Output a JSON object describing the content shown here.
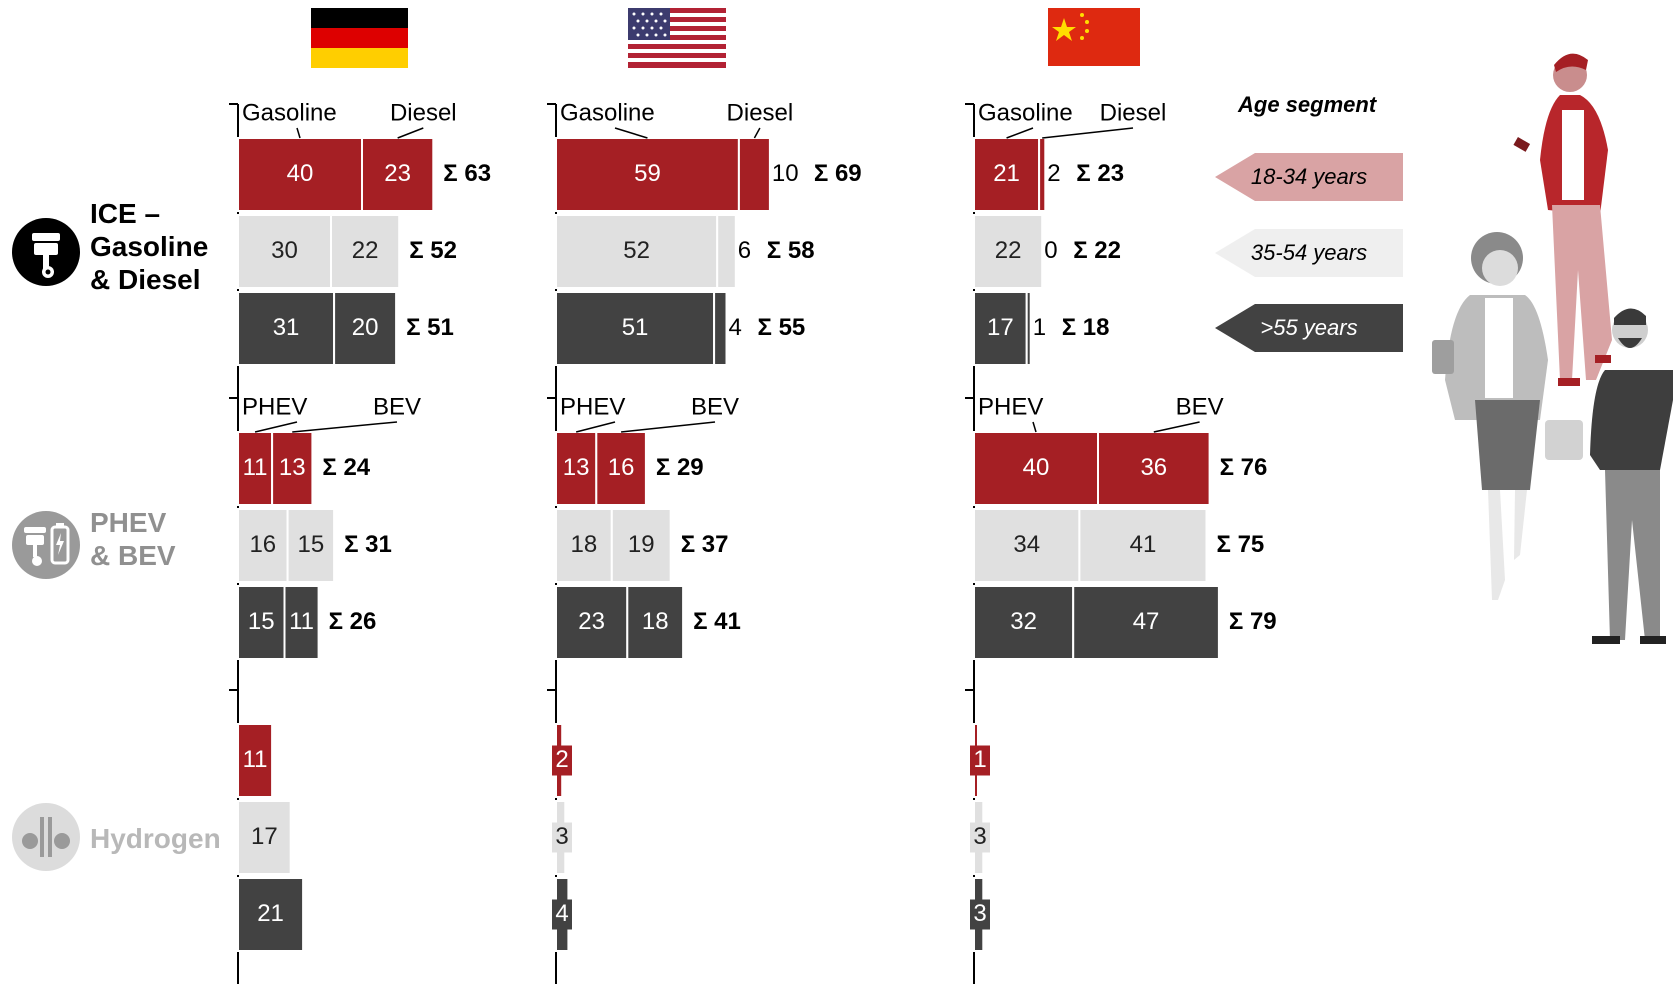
{
  "colors": {
    "young": "#a51f24",
    "middle": "#e0e0e0",
    "old": "#424242",
    "legend_young": "#d9a3a4",
    "legend_middle": "#efefef",
    "legend_old": "#424242"
  },
  "countries": [
    {
      "name": "Germany",
      "flag": "germany-flag"
    },
    {
      "name": "USA",
      "flag": "usa-flag"
    },
    {
      "name": "China",
      "flag": "china-flag"
    }
  ],
  "categories": [
    {
      "label_line1": "ICE –",
      "label_line2": "Gasoline",
      "label_line3": "& Diesel",
      "icon": "piston-icon"
    },
    {
      "label_line1": "PHEV",
      "label_line2": "& BEV",
      "icon": "piston-battery-icon"
    },
    {
      "label_line1": "Hydrogen",
      "icon": "fuel-cell-icon"
    }
  ],
  "legend": {
    "title": "Age segment",
    "items": [
      "18-34 years",
      "35-54 years",
      ">55 years"
    ]
  },
  "chart_data": {
    "type": "bar",
    "orientation": "horizontal-stacked",
    "series_names": [
      "18-34 years",
      "35-54 years",
      ">55 years"
    ],
    "panels": [
      {
        "country": "Germany",
        "groups": [
          {
            "category": "ICE",
            "part_labels": [
              "Gasoline",
              "Diesel"
            ],
            "rows": [
              {
                "parts": [
                  40,
                  23
                ],
                "total": "Σ 63"
              },
              {
                "parts": [
                  30,
                  22
                ],
                "total": "Σ 52"
              },
              {
                "parts": [
                  31,
                  20
                ],
                "total": "Σ 51"
              }
            ]
          },
          {
            "category": "PHEV & BEV",
            "part_labels": [
              "PHEV",
              "BEV"
            ],
            "rows": [
              {
                "parts": [
                  11,
                  13
                ],
                "total": "Σ 24"
              },
              {
                "parts": [
                  16,
                  15
                ],
                "total": "Σ 31"
              },
              {
                "parts": [
                  15,
                  11
                ],
                "total": "Σ 26"
              }
            ]
          },
          {
            "category": "Hydrogen",
            "part_labels": [],
            "rows": [
              {
                "parts": [
                  11
                ]
              },
              {
                "parts": [
                  17
                ]
              },
              {
                "parts": [
                  21
                ]
              }
            ]
          }
        ]
      },
      {
        "country": "USA",
        "groups": [
          {
            "category": "ICE",
            "part_labels": [
              "Gasoline",
              "Diesel"
            ],
            "rows": [
              {
                "parts": [
                  59,
                  10
                ],
                "total": "Σ 69"
              },
              {
                "parts": [
                  52,
                  6
                ],
                "total": "Σ 58"
              },
              {
                "parts": [
                  51,
                  4
                ],
                "total": "Σ 55"
              }
            ]
          },
          {
            "category": "PHEV & BEV",
            "part_labels": [
              "PHEV",
              "BEV"
            ],
            "rows": [
              {
                "parts": [
                  13,
                  16
                ],
                "total": "Σ 29"
              },
              {
                "parts": [
                  18,
                  19
                ],
                "total": "Σ 37"
              },
              {
                "parts": [
                  23,
                  18
                ],
                "total": "Σ 41"
              }
            ]
          },
          {
            "category": "Hydrogen",
            "part_labels": [],
            "rows": [
              {
                "parts": [
                  2
                ]
              },
              {
                "parts": [
                  3
                ]
              },
              {
                "parts": [
                  4
                ]
              }
            ]
          }
        ]
      },
      {
        "country": "China",
        "groups": [
          {
            "category": "ICE",
            "part_labels": [
              "Gasoline",
              "Diesel"
            ],
            "rows": [
              {
                "parts": [
                  21,
                  2
                ],
                "total": "Σ 23"
              },
              {
                "parts": [
                  22,
                  0
                ],
                "total": "Σ 22"
              },
              {
                "parts": [
                  17,
                  1
                ],
                "total": "Σ 18"
              }
            ]
          },
          {
            "category": "PHEV & BEV",
            "part_labels": [
              "PHEV",
              "BEV"
            ],
            "rows": [
              {
                "parts": [
                  40,
                  36
                ],
                "total": "Σ 76"
              },
              {
                "parts": [
                  34,
                  41
                ],
                "total": "Σ 75"
              },
              {
                "parts": [
                  32,
                  47
                ],
                "total": "Σ 79"
              }
            ]
          },
          {
            "category": "Hydrogen",
            "part_labels": [],
            "rows": [
              {
                "parts": [
                  1
                ]
              },
              {
                "parts": [
                  3
                ]
              },
              {
                "parts": [
                  3
                ]
              }
            ]
          }
        ]
      }
    ]
  }
}
